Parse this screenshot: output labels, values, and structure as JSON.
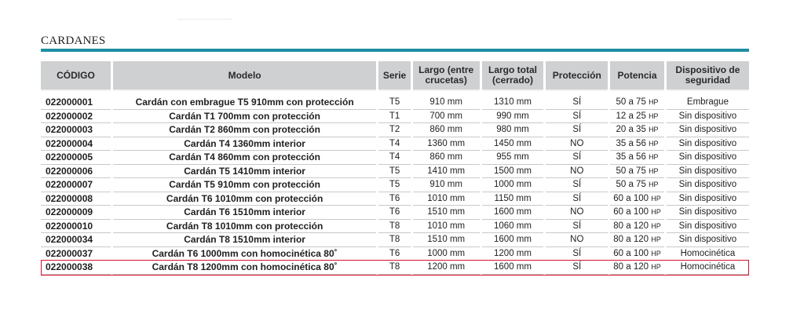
{
  "page": {
    "section_title": "CARDANES",
    "accent_color": "#1e8fa3",
    "highlight_color": "#d0142c",
    "highlighted_row": "022000038"
  },
  "table": {
    "headers": {
      "codigo": "CÓDIGO",
      "modelo": "Modelo",
      "serie": "Serie",
      "largo_entre": "Largo (entre crucetas)",
      "largo_total": "Largo total (cerrado)",
      "proteccion": "Protección",
      "potencia": "Potencia",
      "dispositivo": "Dispositivo de seguridad"
    },
    "rows": [
      {
        "codigo": "022000001",
        "modelo": "Cardán con embrague T5 910mm con protección",
        "serie": "T5",
        "largo_entre": "910 mm",
        "largo_total": "1310 mm",
        "proteccion": "SÍ",
        "potencia": "50 a 75",
        "unit": "HP",
        "dispositivo": "Embrague"
      },
      {
        "codigo": "022000002",
        "modelo": "Cardán T1 700mm con protección",
        "serie": "T1",
        "largo_entre": "700 mm",
        "largo_total": "990 mm",
        "proteccion": "SÍ",
        "potencia": "12 a 25",
        "unit": "HP",
        "dispositivo": "Sin dispositivo"
      },
      {
        "codigo": "022000003",
        "modelo": "Cardán T2 860mm con protección",
        "serie": "T2",
        "largo_entre": "860 mm",
        "largo_total": "980 mm",
        "proteccion": "SÍ",
        "potencia": "20 a 35",
        "unit": "HP",
        "dispositivo": "Sin dispositivo"
      },
      {
        "codigo": "022000004",
        "modelo": "Cardán T4 1360mm interior",
        "serie": "T4",
        "largo_entre": "1360 mm",
        "largo_total": "1450 mm",
        "proteccion": "NO",
        "potencia": "35 a 56",
        "unit": "HP",
        "dispositivo": "Sin dispositivo"
      },
      {
        "codigo": "022000005",
        "modelo": "Cardán T4 860mm con protección",
        "serie": "T4",
        "largo_entre": "860 mm",
        "largo_total": "955 mm",
        "proteccion": "SÍ",
        "potencia": "35 a 56",
        "unit": "HP",
        "dispositivo": "Sin dispositivo"
      },
      {
        "codigo": "022000006",
        "modelo": "Cardán T5 1410mm interior",
        "serie": "T5",
        "largo_entre": "1410 mm",
        "largo_total": "1500 mm",
        "proteccion": "NO",
        "potencia": "50 a 75",
        "unit": "HP",
        "dispositivo": "Sin dispositivo"
      },
      {
        "codigo": "022000007",
        "modelo": "Cardán T5 910mm con protección",
        "serie": "T5",
        "largo_entre": "910 mm",
        "largo_total": "1000 mm",
        "proteccion": "SÍ",
        "potencia": "50 a 75",
        "unit": "HP",
        "dispositivo": "Sin dispositivo"
      },
      {
        "codigo": "022000008",
        "modelo": "Cardán T6 1010mm con protección",
        "serie": "T6",
        "largo_entre": "1010 mm",
        "largo_total": "1150 mm",
        "proteccion": "SÍ",
        "potencia": "60 a 100",
        "unit": "HP",
        "dispositivo": "Sin dispositivo"
      },
      {
        "codigo": "022000009",
        "modelo": "Cardán T6 1510mm interior",
        "serie": "T6",
        "largo_entre": "1510 mm",
        "largo_total": "1600 mm",
        "proteccion": "NO",
        "potencia": "60 a 100",
        "unit": "HP",
        "dispositivo": "Sin dispositivo"
      },
      {
        "codigo": "022000010",
        "modelo": "Cardán T8 1010mm con protección",
        "serie": "T8",
        "largo_entre": "1010 mm",
        "largo_total": "1060 mm",
        "proteccion": "SÍ",
        "potencia": "80 a 120",
        "unit": "HP",
        "dispositivo": "Sin dispositivo"
      },
      {
        "codigo": "022000034",
        "modelo": "Cardán T8 1510mm interior",
        "serie": "T8",
        "largo_entre": "1510 mm",
        "largo_total": "1600 mm",
        "proteccion": "NO",
        "potencia": "80 a 120",
        "unit": "HP",
        "dispositivo": "Sin dispositivo"
      },
      {
        "codigo": "022000037",
        "modelo": "Cardán T6 1000mm con homocinética 80˚",
        "serie": "T6",
        "largo_entre": "1000 mm",
        "largo_total": "1200 mm",
        "proteccion": "SÍ",
        "potencia": "60 a 100",
        "unit": "HP",
        "dispositivo": "Homocinética"
      },
      {
        "codigo": "022000038",
        "modelo": "Cardán T8 1200mm con homocinética 80˚",
        "serie": "T8",
        "largo_entre": "1200 mm",
        "largo_total": "1600 mm",
        "proteccion": "SÍ",
        "potencia": "80 a 120",
        "unit": "HP",
        "dispositivo": "Homocinética"
      }
    ]
  }
}
